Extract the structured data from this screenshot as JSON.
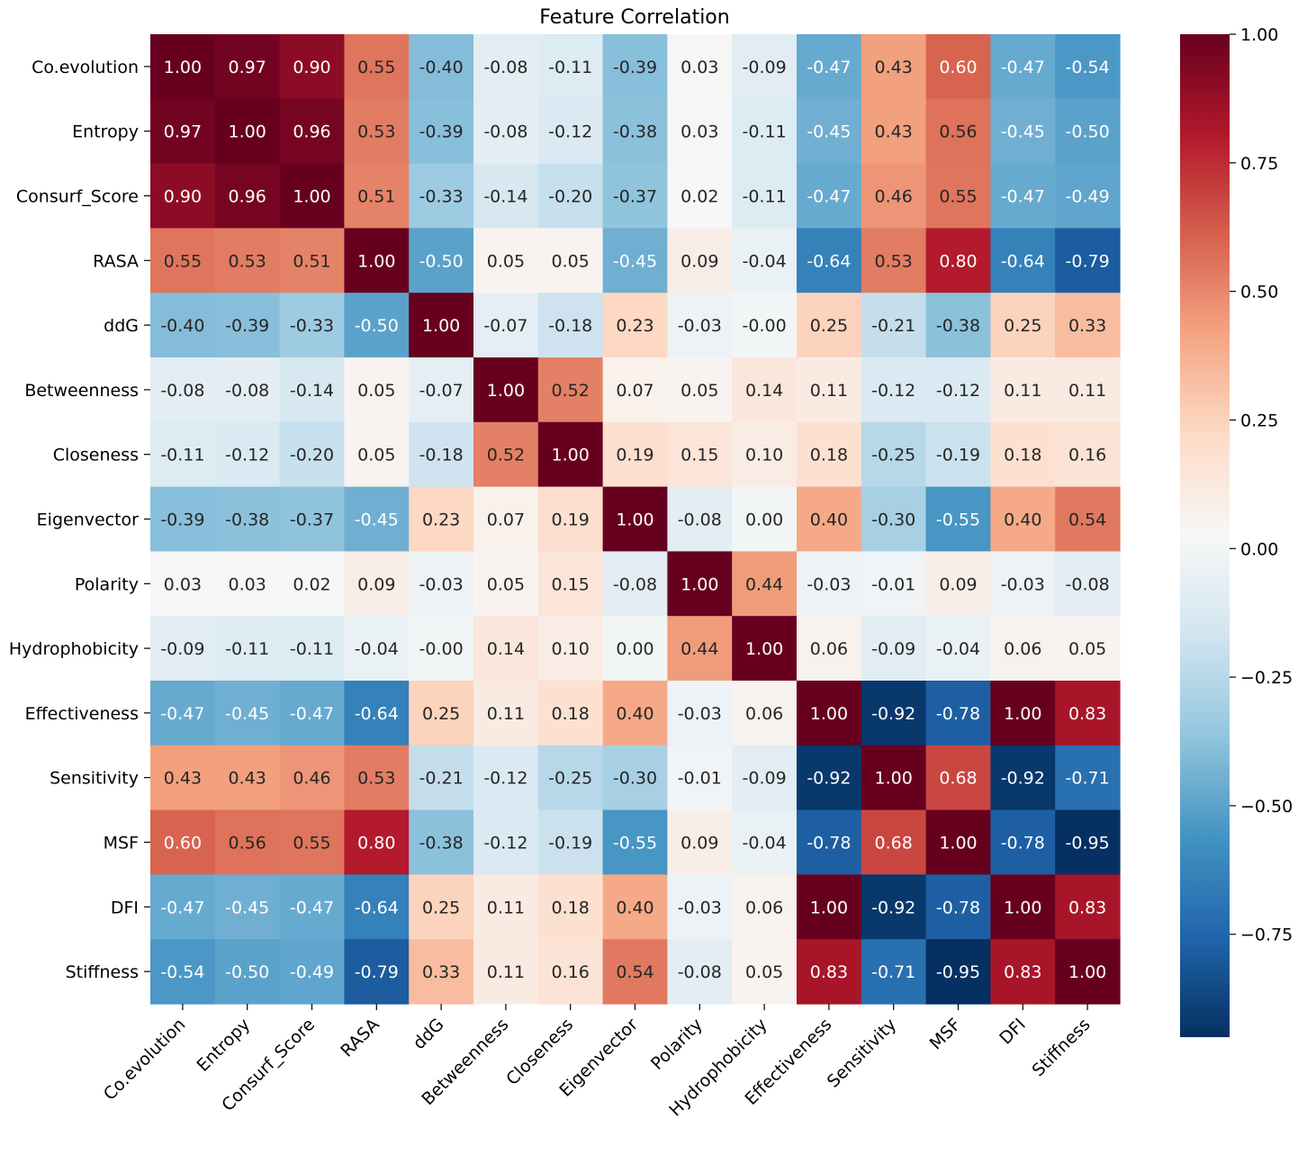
{
  "chart_data": {
    "type": "heatmap",
    "title": "Feature Correlation",
    "xlabel": "",
    "ylabel": "",
    "labels": [
      "Co.evolution",
      "Entropy",
      "Consurf_Score",
      "RASA",
      "ddG",
      "Betweenness",
      "Closeness",
      "Eigenvector",
      "Polarity",
      "Hydrophobicity",
      "Effectiveness",
      "Sensitivity",
      "MSF",
      "DFI",
      "Stiffness"
    ],
    "matrix": [
      [
        1.0,
        0.97,
        0.9,
        0.55,
        -0.4,
        -0.08,
        -0.11,
        -0.39,
        0.03,
        -0.09,
        -0.47,
        0.43,
        0.6,
        -0.47,
        -0.54
      ],
      [
        0.97,
        1.0,
        0.96,
        0.53,
        -0.39,
        -0.08,
        -0.12,
        -0.38,
        0.03,
        -0.11,
        -0.45,
        0.43,
        0.56,
        -0.45,
        -0.5
      ],
      [
        0.9,
        0.96,
        1.0,
        0.51,
        -0.33,
        -0.14,
        -0.2,
        -0.37,
        0.02,
        -0.11,
        -0.47,
        0.46,
        0.55,
        -0.47,
        -0.49
      ],
      [
        0.55,
        0.53,
        0.51,
        1.0,
        -0.5,
        0.05,
        0.05,
        -0.45,
        0.09,
        -0.04,
        -0.64,
        0.53,
        0.8,
        -0.64,
        -0.79
      ],
      [
        -0.4,
        -0.39,
        -0.33,
        -0.5,
        1.0,
        -0.07,
        -0.18,
        0.23,
        -0.03,
        -0.0,
        0.25,
        -0.21,
        -0.38,
        0.25,
        0.33
      ],
      [
        -0.08,
        -0.08,
        -0.14,
        0.05,
        -0.07,
        1.0,
        0.52,
        0.07,
        0.05,
        0.14,
        0.11,
        -0.12,
        -0.12,
        0.11,
        0.11
      ],
      [
        -0.11,
        -0.12,
        -0.2,
        0.05,
        -0.18,
        0.52,
        1.0,
        0.19,
        0.15,
        0.1,
        0.18,
        -0.25,
        -0.19,
        0.18,
        0.16
      ],
      [
        -0.39,
        -0.38,
        -0.37,
        -0.45,
        0.23,
        0.07,
        0.19,
        1.0,
        -0.08,
        0.0,
        0.4,
        -0.3,
        -0.55,
        0.4,
        0.54
      ],
      [
        0.03,
        0.03,
        0.02,
        0.09,
        -0.03,
        0.05,
        0.15,
        -0.08,
        1.0,
        0.44,
        -0.03,
        -0.01,
        0.09,
        -0.03,
        -0.08
      ],
      [
        -0.09,
        -0.11,
        -0.11,
        -0.04,
        -0.0,
        0.14,
        0.1,
        0.0,
        0.44,
        1.0,
        0.06,
        -0.09,
        -0.04,
        0.06,
        0.05
      ],
      [
        -0.47,
        -0.45,
        -0.47,
        -0.64,
        0.25,
        0.11,
        0.18,
        0.4,
        -0.03,
        0.06,
        1.0,
        -0.92,
        -0.78,
        1.0,
        0.83
      ],
      [
        0.43,
        0.43,
        0.46,
        0.53,
        -0.21,
        -0.12,
        -0.25,
        -0.3,
        -0.01,
        -0.09,
        -0.92,
        1.0,
        0.68,
        -0.92,
        -0.71
      ],
      [
        0.6,
        0.56,
        0.55,
        0.8,
        -0.38,
        -0.12,
        -0.19,
        -0.55,
        0.09,
        -0.04,
        -0.78,
        0.68,
        1.0,
        -0.78,
        -0.95
      ],
      [
        -0.47,
        -0.45,
        -0.47,
        -0.64,
        0.25,
        0.11,
        0.18,
        0.4,
        -0.03,
        0.06,
        1.0,
        -0.92,
        -0.78,
        1.0,
        0.83
      ],
      [
        -0.54,
        -0.5,
        -0.49,
        -0.79,
        0.33,
        0.11,
        0.16,
        0.54,
        -0.08,
        0.05,
        0.83,
        -0.71,
        -0.95,
        0.83,
        1.0
      ]
    ],
    "value_format": "2 decimals",
    "colormap": "RdBu_r",
    "vmin": -0.95,
    "vmax": 1.0,
    "colorbar_ticks": [
      1.0,
      0.75,
      0.5,
      0.25,
      0.0,
      -0.25,
      -0.5,
      -0.75
    ],
    "colorbar_tick_labels": [
      "1.00",
      "0.75",
      "0.50",
      "0.25",
      "0.00",
      "−0.25",
      "−0.50",
      "−0.75"
    ],
    "colors": {
      "RdBu_r_stops": [
        "#053061",
        "#2166ac",
        "#4393c3",
        "#92c5de",
        "#d1e5f0",
        "#f7f7f7",
        "#fddbc7",
        "#f4a582",
        "#d6604d",
        "#b2182b",
        "#67001f"
      ],
      "text_dark": "#262626",
      "text_light": "#ffffff"
    },
    "legend": "colorbar-right"
  }
}
